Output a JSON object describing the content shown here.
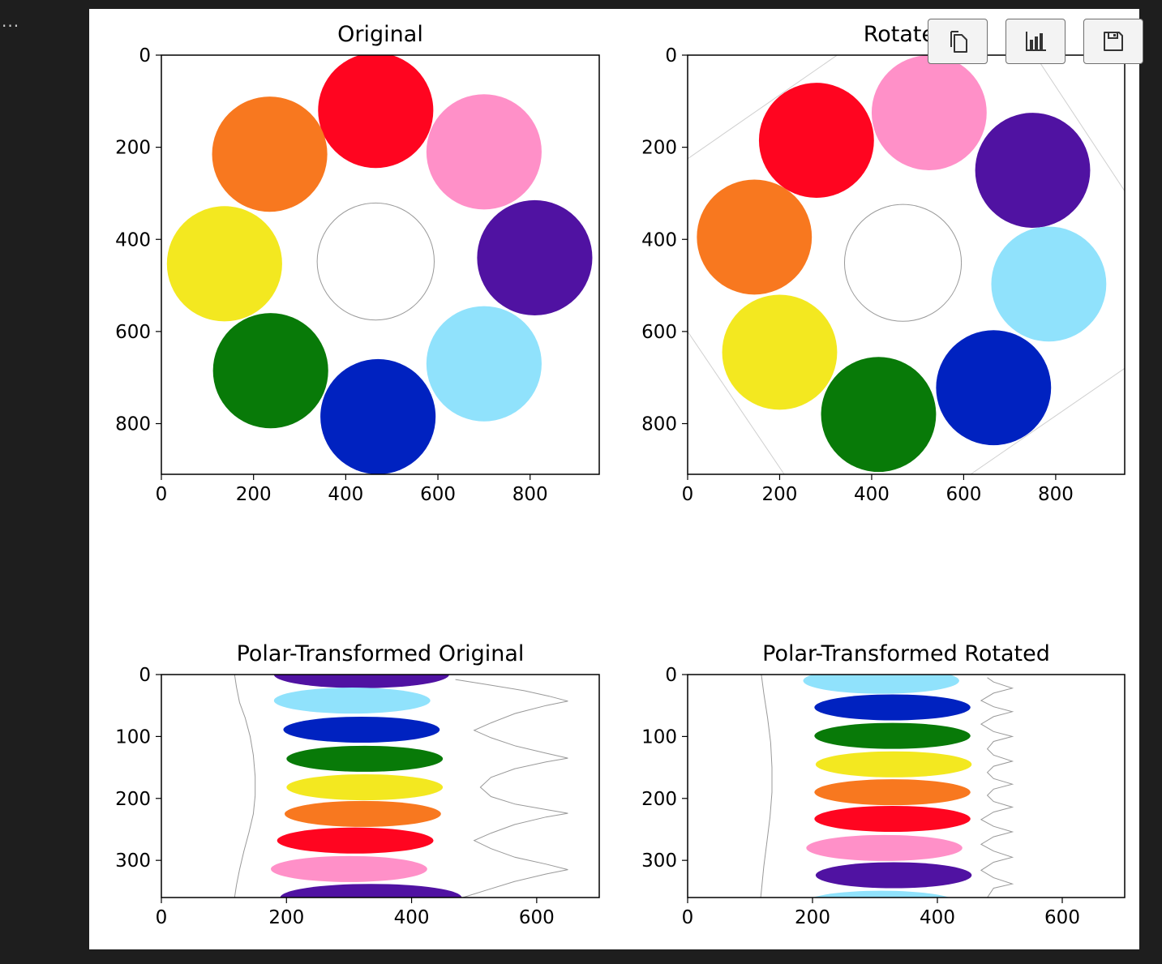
{
  "toolbar": {
    "more_label": "...",
    "buttons": [
      {
        "name": "copy-button",
        "icon": "copy-icon"
      },
      {
        "name": "chart-button",
        "icon": "bar-chart-icon"
      },
      {
        "name": "save-button",
        "icon": "save-icon"
      }
    ]
  },
  "colors": {
    "red": "#ff0520",
    "pink": "#ff90c8",
    "purple": "#5012a2",
    "cyan": "#90e2fc",
    "blue": "#0022c0",
    "green": "#087a08",
    "yellow": "#f3e820",
    "orange": "#f8781f",
    "outline": "#aaaaaa"
  },
  "chart_data": [
    {
      "type": "image",
      "title": "Original",
      "xlim": [
        0,
        950
      ],
      "ylim": [
        910,
        0
      ],
      "xticks": [
        0,
        200,
        400,
        600,
        800
      ],
      "yticks": [
        0,
        200,
        400,
        600,
        800
      ],
      "circles": [
        {
          "color": "red",
          "x": 465,
          "y": 120,
          "r": 125
        },
        {
          "color": "pink",
          "x": 700,
          "y": 210,
          "r": 125
        },
        {
          "color": "purple",
          "x": 810,
          "y": 440,
          "r": 125
        },
        {
          "color": "cyan",
          "x": 700,
          "y": 670,
          "r": 125
        },
        {
          "color": "blue",
          "x": 470,
          "y": 785,
          "r": 125
        },
        {
          "color": "green",
          "x": 237,
          "y": 685,
          "r": 125
        },
        {
          "color": "yellow",
          "x": 137,
          "y": 453,
          "r": 125
        },
        {
          "color": "orange",
          "x": 235,
          "y": 215,
          "r": 125
        },
        {
          "color": "outline",
          "x": 465,
          "y": 448,
          "r": 127,
          "outline": true
        }
      ],
      "lines": []
    },
    {
      "type": "image",
      "title": "Rotated",
      "xlim": [
        0,
        950
      ],
      "ylim": [
        910,
        0
      ],
      "xticks": [
        0,
        200,
        400,
        600,
        800
      ],
      "yticks": [
        0,
        200,
        400,
        600,
        800
      ],
      "circles": [
        {
          "color": "red",
          "x": 280,
          "y": 185,
          "r": 125
        },
        {
          "color": "pink",
          "x": 525,
          "y": 125,
          "r": 125
        },
        {
          "color": "purple",
          "x": 750,
          "y": 250,
          "r": 125
        },
        {
          "color": "cyan",
          "x": 785,
          "y": 497,
          "r": 125
        },
        {
          "color": "blue",
          "x": 665,
          "y": 722,
          "r": 125
        },
        {
          "color": "green",
          "x": 415,
          "y": 780,
          "r": 125
        },
        {
          "color": "yellow",
          "x": 200,
          "y": 645,
          "r": 125
        },
        {
          "color": "orange",
          "x": 145,
          "y": 395,
          "r": 125
        },
        {
          "color": "outline",
          "x": 468,
          "y": 451,
          "r": 127,
          "outline": true
        }
      ],
      "lines": [
        [
          [
            0,
            225
          ],
          [
            325,
            0
          ]
        ],
        [
          [
            755,
            0
          ],
          [
            950,
            295
          ]
        ],
        [
          [
            950,
            680
          ],
          [
            615,
            910
          ]
        ],
        [
          [
            210,
            910
          ],
          [
            0,
            600
          ]
        ]
      ]
    },
    {
      "type": "image",
      "title": "Polar-Transformed Original",
      "xlim": [
        0,
        700
      ],
      "ylim": [
        360,
        0
      ],
      "xticks": [
        0,
        200,
        400,
        600
      ],
      "yticks": [
        0,
        100,
        200,
        300
      ],
      "ellipses": [
        {
          "color": "purple",
          "x": 320,
          "y": 0,
          "rx": 140,
          "ry": 22
        },
        {
          "color": "cyan",
          "x": 305,
          "y": 42,
          "rx": 125,
          "ry": 21
        },
        {
          "color": "blue",
          "x": 320,
          "y": 89,
          "rx": 125,
          "ry": 21
        },
        {
          "color": "green",
          "x": 325,
          "y": 136,
          "rx": 125,
          "ry": 21
        },
        {
          "color": "yellow",
          "x": 325,
          "y": 182,
          "rx": 125,
          "ry": 21
        },
        {
          "color": "orange",
          "x": 322,
          "y": 225,
          "rx": 125,
          "ry": 21
        },
        {
          "color": "red",
          "x": 310,
          "y": 268,
          "rx": 125,
          "ry": 21
        },
        {
          "color": "pink",
          "x": 300,
          "y": 314,
          "rx": 125,
          "ry": 21
        },
        {
          "color": "purple",
          "x": 335,
          "y": 360,
          "rx": 145,
          "ry": 22
        }
      ],
      "curves": [
        {
          "points": [
            [
              117,
              0
            ],
            [
              120,
              20
            ],
            [
              125,
              45
            ],
            [
              134,
              70
            ],
            [
              142,
              100
            ],
            [
              147,
              130
            ],
            [
              150,
              165
            ],
            [
              150,
              195
            ],
            [
              147,
              225
            ],
            [
              140,
              255
            ],
            [
              132,
              285
            ],
            [
              125,
              315
            ],
            [
              120,
              340
            ],
            [
              117,
              360
            ]
          ]
        },
        {
          "points": [
            [
              470,
              8
            ],
            [
              520,
              16
            ],
            [
              580,
              26
            ],
            [
              620,
              35
            ],
            [
              650,
              43
            ],
            [
              615,
              50
            ],
            [
              565,
              63
            ],
            [
              527,
              78
            ],
            [
              500,
              90
            ],
            [
              527,
              102
            ],
            [
              565,
              115
            ],
            [
              615,
              127
            ],
            [
              650,
              135
            ],
            [
              615,
              141
            ],
            [
              565,
              152
            ],
            [
              527,
              166
            ],
            [
              510,
              182
            ],
            [
              527,
              197
            ],
            [
              565,
              209
            ],
            [
              615,
              218
            ],
            [
              650,
              224
            ],
            [
              615,
              230
            ],
            [
              565,
              242
            ],
            [
              527,
              256
            ],
            [
              500,
              268
            ],
            [
              527,
              281
            ],
            [
              565,
              295
            ],
            [
              615,
              306
            ],
            [
              650,
              315
            ],
            [
              615,
              322
            ],
            [
              565,
              334
            ],
            [
              520,
              348
            ],
            [
              482,
              360
            ]
          ]
        }
      ]
    },
    {
      "type": "image",
      "title": "Polar-Transformed Rotated",
      "xlim": [
        0,
        700
      ],
      "ylim": [
        360,
        0
      ],
      "xticks": [
        0,
        200,
        400,
        600
      ],
      "yticks": [
        0,
        100,
        200,
        300
      ],
      "ellipses": [
        {
          "color": "cyan",
          "x": 310,
          "y": 10,
          "rx": 125,
          "ry": 21
        },
        {
          "color": "blue",
          "x": 328,
          "y": 53,
          "rx": 125,
          "ry": 21
        },
        {
          "color": "green",
          "x": 328,
          "y": 99,
          "rx": 125,
          "ry": 21
        },
        {
          "color": "yellow",
          "x": 330,
          "y": 145,
          "rx": 125,
          "ry": 21
        },
        {
          "color": "orange",
          "x": 328,
          "y": 190,
          "rx": 125,
          "ry": 21
        },
        {
          "color": "red",
          "x": 328,
          "y": 233,
          "rx": 125,
          "ry": 21
        },
        {
          "color": "pink",
          "x": 315,
          "y": 280,
          "rx": 125,
          "ry": 21
        },
        {
          "color": "purple",
          "x": 330,
          "y": 324,
          "rx": 125,
          "ry": 21
        },
        {
          "color": "cyan",
          "x": 310,
          "y": 370,
          "rx": 125,
          "ry": 21
        }
      ],
      "curves": [
        {
          "points": [
            [
              118,
              0
            ],
            [
              122,
              30
            ],
            [
              128,
              70
            ],
            [
              133,
              110
            ],
            [
              135,
              150
            ],
            [
              135,
              190
            ],
            [
              132,
              230
            ],
            [
              127,
              270
            ],
            [
              122,
              310
            ],
            [
              118,
              350
            ],
            [
              117,
              360
            ]
          ]
        },
        {
          "points": [
            [
              480,
              5
            ],
            [
              490,
              12
            ],
            [
              520,
              22
            ],
            [
              490,
              30
            ],
            [
              470,
              42
            ],
            [
              490,
              52
            ],
            [
              520,
              60
            ],
            [
              490,
              68
            ],
            [
              470,
              80
            ],
            [
              490,
              92
            ],
            [
              520,
              100
            ],
            [
              490,
              108
            ],
            [
              480,
              120
            ],
            [
              490,
              130
            ],
            [
              520,
              140
            ],
            [
              490,
              148
            ],
            [
              480,
              158
            ],
            [
              490,
              168
            ],
            [
              520,
              177
            ],
            [
              490,
              185
            ],
            [
              480,
              195
            ],
            [
              490,
              205
            ],
            [
              520,
              214
            ],
            [
              490,
              222
            ],
            [
              470,
              234
            ],
            [
              490,
              245
            ],
            [
              520,
              254
            ],
            [
              490,
              262
            ],
            [
              470,
              274
            ],
            [
              490,
              285
            ],
            [
              520,
              295
            ],
            [
              490,
              303
            ],
            [
              470,
              316
            ],
            [
              490,
              328
            ],
            [
              520,
              338
            ],
            [
              490,
              345
            ],
            [
              480,
              360
            ]
          ]
        }
      ]
    }
  ]
}
